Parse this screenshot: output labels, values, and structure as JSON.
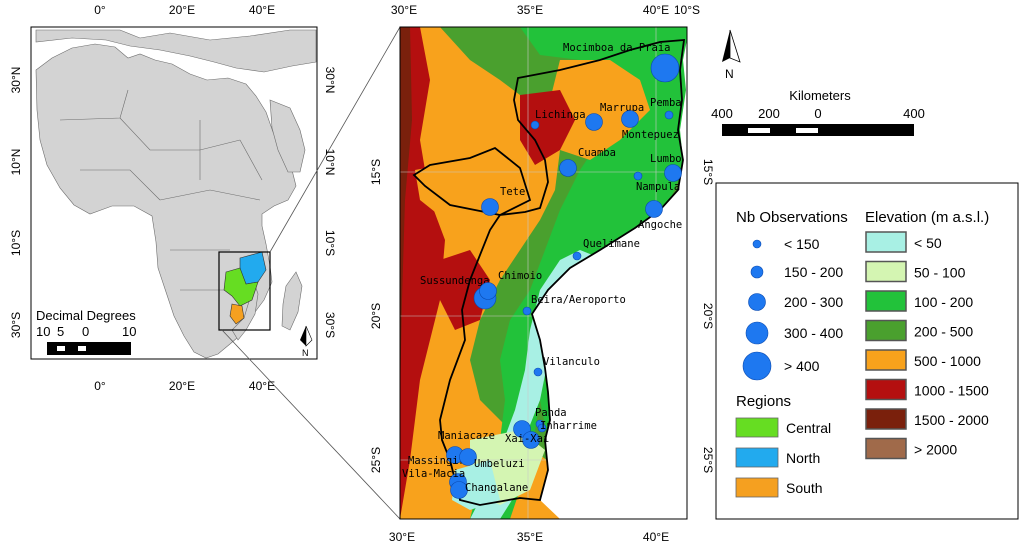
{
  "overview_map": {
    "top_ticks": [
      "0°",
      "20°E",
      "40°E"
    ],
    "bottom_ticks": [
      "0°",
      "20°E",
      "40°E"
    ],
    "left_ticks": [
      "30°N",
      "10°N",
      "10°S",
      "30°S"
    ],
    "right_ticks": [
      "30°N",
      "10°N",
      "10°S",
      "30°S"
    ],
    "scale_title": "Decimal Degrees",
    "scale_labels": [
      "10",
      "5",
      "0",
      "10"
    ],
    "north_label": "N"
  },
  "detail_map": {
    "top_ticks": [
      "30°E",
      "35°E",
      "40°E",
      "10°S"
    ],
    "bottom_ticks": [
      "30°E",
      "35°E",
      "40°E"
    ],
    "left_ticks": [
      "15°S",
      "20°S",
      "25°S"
    ],
    "right_ticks": [
      "15°S",
      "20°S",
      "25°S"
    ],
    "stations": [
      {
        "name": "Mocimboa da Praia",
        "size_class": 4
      },
      {
        "name": "Pemba",
        "size_class": 0
      },
      {
        "name": "Lichinga",
        "size_class": 0
      },
      {
        "name": "Marrupa",
        "size_class": 2
      },
      {
        "name": "Montepuez",
        "size_class": 2
      },
      {
        "name": "Cuamba",
        "size_class": 2
      },
      {
        "name": "Lumbo",
        "size_class": 2
      },
      {
        "name": "Nampula",
        "size_class": 0
      },
      {
        "name": "Tete",
        "size_class": 2
      },
      {
        "name": "Angoche",
        "size_class": 2
      },
      {
        "name": "Quelimane",
        "size_class": 0
      },
      {
        "name": "Sussundenga",
        "size_class": 3
      },
      {
        "name": "Chimoio",
        "size_class": 2
      },
      {
        "name": "Beira/Aeroporto",
        "size_class": 0
      },
      {
        "name": "Vilanculo",
        "size_class": 0
      },
      {
        "name": "Panda",
        "size_class": 0
      },
      {
        "name": "Inharrime",
        "size_class": 0
      },
      {
        "name": "Maniacaze",
        "size_class": 2
      },
      {
        "name": "Xai-Xai",
        "size_class": 2
      },
      {
        "name": "Massingir",
        "size_class": 2
      },
      {
        "name": "Umbeluzi",
        "size_class": 2
      },
      {
        "name": "Vila-Macia",
        "size_class": 2
      },
      {
        "name": "Changalane",
        "size_class": 2
      }
    ]
  },
  "main_scale": {
    "title": "Kilometers",
    "labels": [
      "400",
      "200",
      "0",
      "400"
    ],
    "north_label": "N"
  },
  "legend": {
    "obs_title": "Nb Observations",
    "obs_items": [
      "< 150",
      "150 - 200",
      "200 - 300",
      "300 - 400",
      "> 400"
    ],
    "regions_title": "Regions",
    "regions": [
      {
        "label": "Central",
        "color": "#66dd22"
      },
      {
        "label": "North",
        "color": "#22aaee"
      },
      {
        "label": "South",
        "color": "#f5a020"
      }
    ],
    "elev_title": "Elevation (m a.s.l.)",
    "elev_items": [
      {
        "label": "< 50",
        "color": "#a8f0e4"
      },
      {
        "label": "50 - 100",
        "color": "#d4f5b2"
      },
      {
        "label": "100 - 200",
        "color": "#22c23a"
      },
      {
        "label": "200 - 500",
        "color": "#4aa02e"
      },
      {
        "label": "500 - 1000",
        "color": "#f8a21c"
      },
      {
        "label": "1000 - 1500",
        "color": "#b40f0f"
      },
      {
        "label": "1500 - 2000",
        "color": "#7a200c"
      },
      {
        "label": "> 2000",
        "color": "#a06a4a"
      }
    ]
  },
  "colors": {
    "water": "#ffffff",
    "land": "#d3d3d3",
    "dot": "#1e78f0"
  }
}
